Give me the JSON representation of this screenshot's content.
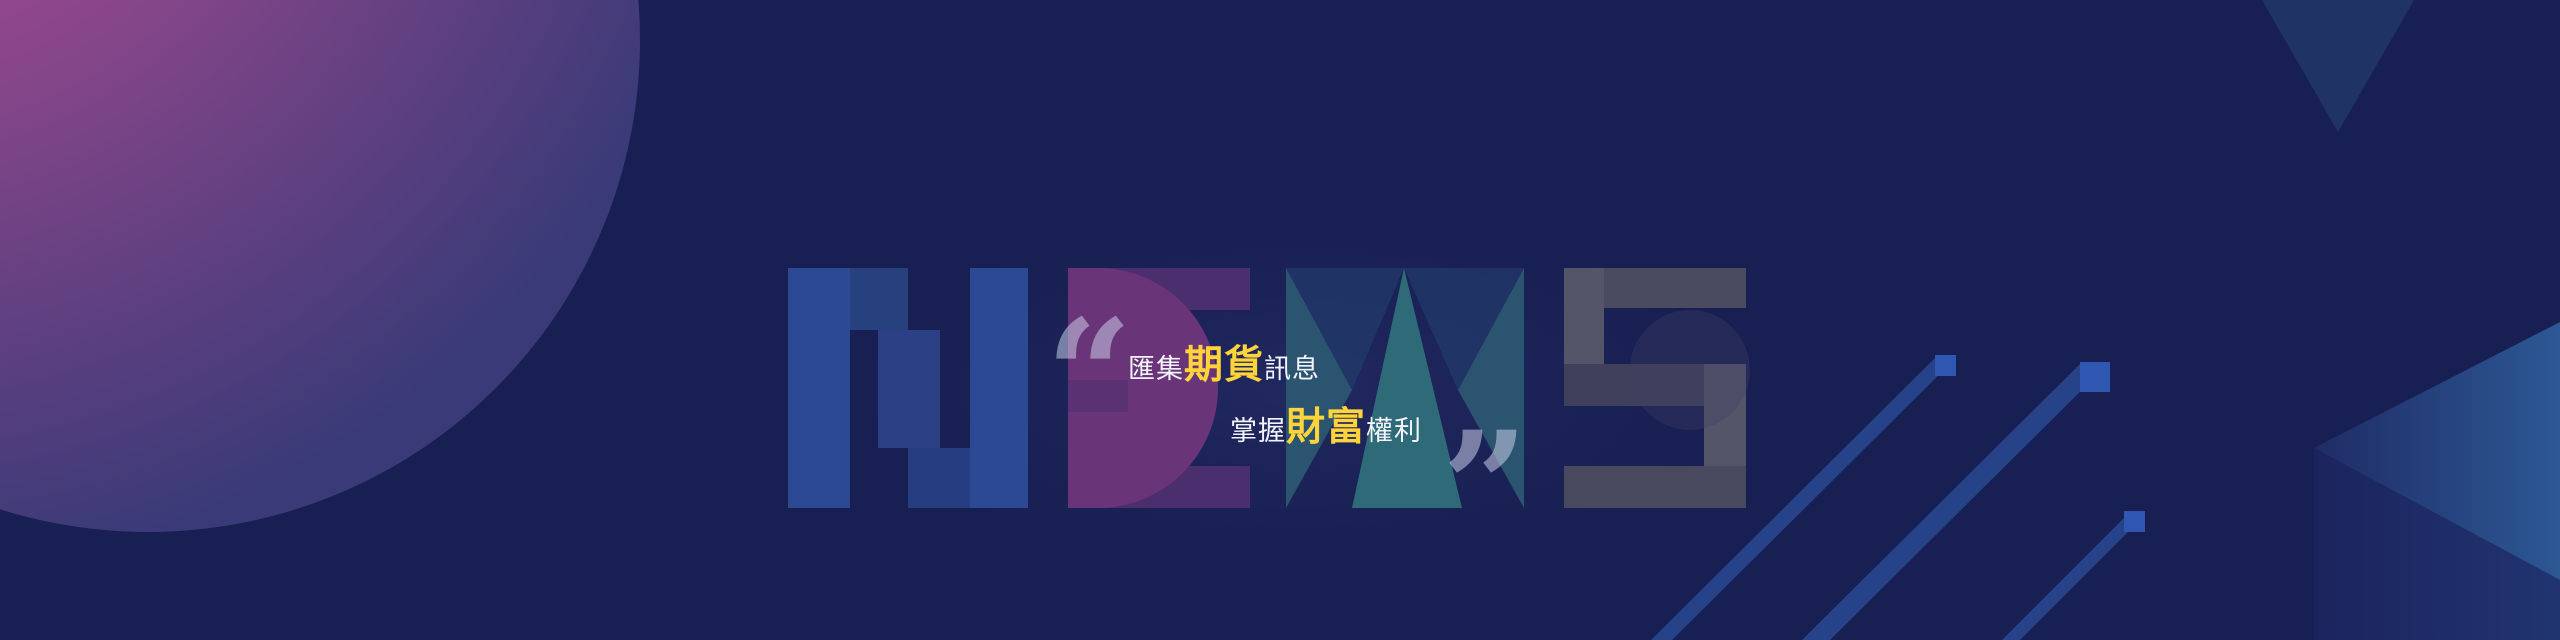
{
  "banner": {
    "headline": "NEWS",
    "line1": {
      "pre": "匯集",
      "emph": "期貨",
      "post": "訊息"
    },
    "line2": {
      "pre": "掌握",
      "emph": "財富",
      "post": "權利"
    },
    "quote_open": "“",
    "quote_close": "”"
  },
  "colors": {
    "background": "#181f52",
    "accent_yellow": "#ffd43b",
    "text_white": "#ffffff",
    "pink_glow": "#c4468e",
    "blue_block": "#2c4a94",
    "purple_block": "#6a3478",
    "teal_block": "#2e6a78",
    "gray_block": "#55556a"
  },
  "icons": {
    "quote_open": "quote-open-icon",
    "quote_close": "quote-close-icon"
  }
}
